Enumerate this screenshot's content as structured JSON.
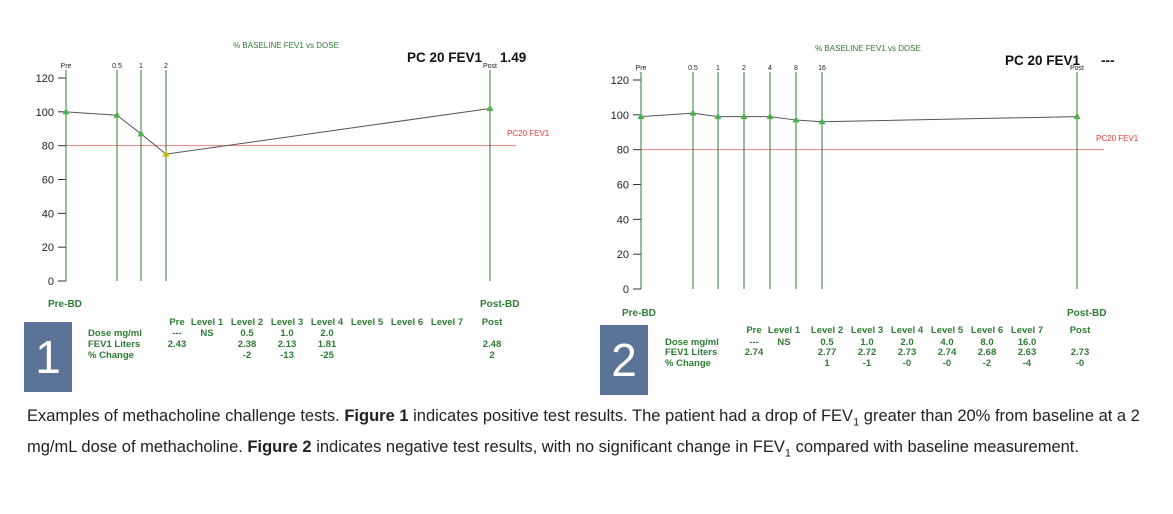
{
  "colors": {
    "axis": "#333333",
    "line": "#555555",
    "vline": "#2e7d32",
    "pc20": "#f08080",
    "marker": "#4caf50",
    "marker_low": "#c9b400",
    "badge": "#5a7396"
  },
  "chart_data": [
    {
      "type": "line",
      "title": "% BASELINE FEV1 vs DOSE",
      "pc20_label": "PC 20 FEV1",
      "pc20_value": "1.49",
      "threshold_label": "PC20 FEV1",
      "threshold": 80,
      "ylim": [
        0,
        120
      ],
      "yticks": [
        0,
        20,
        40,
        60,
        80,
        100,
        120
      ],
      "xlabel_left": "Pre-BD",
      "xlabel_right": "Post-BD",
      "dose_labels": [
        "Pre",
        "0.5",
        "1",
        "2",
        "Post"
      ],
      "points": [
        {
          "label": "Pre",
          "value": 100
        },
        {
          "label": "0.5",
          "value": 98
        },
        {
          "label": "1",
          "value": 87
        },
        {
          "label": "2",
          "value": 75
        },
        {
          "label": "Post",
          "value": 102
        }
      ],
      "badge": "1",
      "table": {
        "columns": [
          "Pre",
          "Level 1",
          "Level 2",
          "Level 3",
          "Level 4",
          "Level 5",
          "Level 6",
          "Level 7",
          "Post"
        ],
        "rows": [
          {
            "label": "Dose mg/ml",
            "values": [
              "---",
              "NS",
              "0.5",
              "1.0",
              "2.0",
              "",
              "",
              "",
              ""
            ]
          },
          {
            "label": "FEV1 Liters",
            "values": [
              "2.43",
              "",
              "2.38",
              "2.13",
              "1.81",
              "",
              "",
              "",
              "2.48"
            ]
          },
          {
            "label": "% Change",
            "values": [
              "",
              "",
              "-2",
              "-13",
              "-25",
              "",
              "",
              "",
              "2"
            ]
          }
        ]
      }
    },
    {
      "type": "line",
      "title": "% BASELINE FEV1 vs DOSE",
      "pc20_label": "PC 20 FEV1",
      "pc20_value": "---",
      "threshold_label": "PC20 FEV1",
      "threshold": 80,
      "ylim": [
        0,
        120
      ],
      "yticks": [
        0,
        20,
        40,
        60,
        80,
        100,
        120
      ],
      "xlabel_left": "Pre-BD",
      "xlabel_right": "Post-BD",
      "dose_labels": [
        "Pre",
        "0.5",
        "1",
        "2",
        "4",
        "8",
        "16",
        "Post"
      ],
      "points": [
        {
          "label": "Pre",
          "value": 99
        },
        {
          "label": "0.5",
          "value": 101
        },
        {
          "label": "1",
          "value": 99
        },
        {
          "label": "2",
          "value": 99
        },
        {
          "label": "4",
          "value": 99
        },
        {
          "label": "8",
          "value": 97
        },
        {
          "label": "16",
          "value": 96
        },
        {
          "label": "Post",
          "value": 99
        }
      ],
      "badge": "2",
      "table": {
        "columns": [
          "Pre",
          "Level 1",
          "Level 2",
          "Level 3",
          "Level 4",
          "Level 5",
          "Level 6",
          "Level 7",
          "Post"
        ],
        "rows": [
          {
            "label": "Dose mg/ml",
            "values": [
              "---",
              "NS",
              "0.5",
              "1.0",
              "2.0",
              "4.0",
              "8.0",
              "16.0",
              ""
            ]
          },
          {
            "label": "FEV1 Liters",
            "values": [
              "2.74",
              "",
              "2.77",
              "2.72",
              "2.73",
              "2.74",
              "2.68",
              "2.63",
              "2.73"
            ]
          },
          {
            "label": "% Change",
            "values": [
              "",
              "",
              "1",
              "-1",
              "-0",
              "-0",
              "-2",
              "-4",
              "-0"
            ]
          }
        ]
      }
    }
  ],
  "caption": {
    "p1": "Examples of methacholine challenge tests. ",
    "b1": "Figure 1",
    "p2": " indicates positive test results. The patient had a drop of FEV",
    "sub1": "1",
    "p3": " greater than 20% from baseline at a 2 mg/mL dose of methacholine. ",
    "b2": "Figure 2",
    "p4": " indicates negative test results, with no significant change in FEV",
    "sub2": "1",
    "p5": " compared with baseline measurement."
  }
}
